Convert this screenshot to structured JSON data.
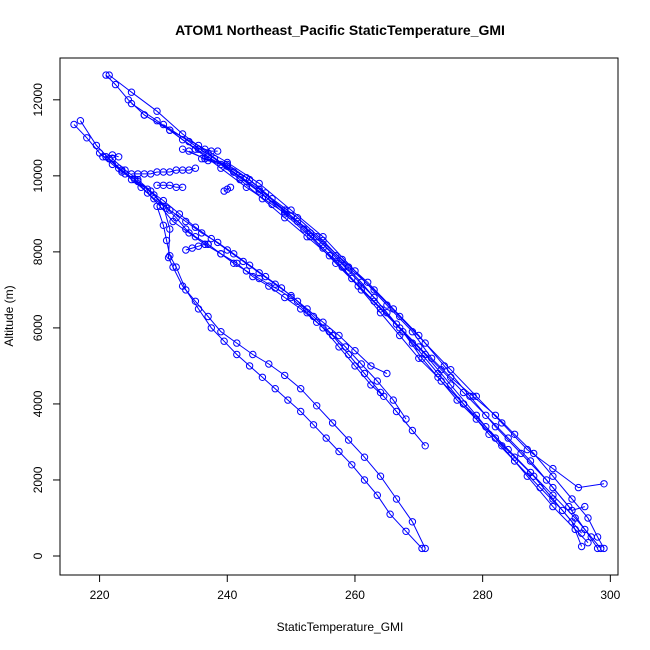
{
  "chart_data": {
    "type": "line",
    "title": "ATOM1 Northeast_Pacific StaticTemperature_GMI",
    "xlabel": "StaticTemperature_GMI",
    "ylabel": "Altitude (m)",
    "xlim": [
      213.8,
      301.2
    ],
    "ylim": [
      -500,
      13100
    ],
    "xticks": [
      220,
      240,
      260,
      280,
      300
    ],
    "yticks": [
      0,
      2000,
      4000,
      6000,
      8000,
      10000,
      12000
    ],
    "grid": false,
    "legend": "none",
    "color": "#0000ff",
    "marker": "open-circle",
    "series": [
      {
        "x": [
          221.0,
          222.5,
          224.5,
          227.0,
          231.0,
          235.5,
          240.0,
          245.0,
          250.0,
          255.0,
          260.0,
          265.0,
          269.0,
          272.0,
          275.0,
          278.5,
          282.0,
          285.0,
          288.0,
          291.0,
          294.0,
          296.5,
          298.0,
          299.0
        ],
        "y": [
          12650,
          12400,
          12000,
          11600,
          11200,
          10800,
          10350,
          9800,
          9100,
          8400,
          7500,
          6600,
          5900,
          5200,
          4700,
          4200,
          3700,
          3200,
          2700,
          2100,
          1500,
          1000,
          500,
          200
        ]
      },
      {
        "x": [
          221.5,
          225.0,
          229.0,
          233.0,
          237.0,
          241.0,
          245.0,
          249.0,
          253.0,
          257.0,
          260.5,
          264.0,
          267.5,
          270.5,
          273.5,
          277.0,
          280.5,
          284.0,
          287.5,
          291.0,
          294.5,
          297.0,
          298.5
        ],
        "y": [
          12650,
          12200,
          11700,
          11100,
          10600,
          10100,
          9600,
          9000,
          8400,
          7700,
          7100,
          6500,
          5900,
          5200,
          4600,
          4000,
          3400,
          2800,
          2200,
          1600,
          1000,
          500,
          200
        ]
      },
      {
        "x": [
          230.0,
          234.0,
          238.0,
          242.0,
          246.0,
          250.0,
          254.0,
          258.0,
          262.0,
          266.0,
          270.0,
          274.0,
          278.0,
          282.0,
          286.0,
          290.0,
          293.5,
          296.0,
          298.0
        ],
        "y": [
          11350,
          10900,
          10450,
          9950,
          9450,
          8950,
          8400,
          7800,
          7200,
          6500,
          5800,
          5000,
          4200,
          3400,
          2700,
          2000,
          1300,
          700,
          200
        ]
      },
      {
        "x": [
          227.0,
          231.0,
          235.0,
          239.0,
          243.0,
          247.0,
          251.0,
          255.0,
          259.0,
          263.0,
          267.0,
          271.0,
          275.0,
          279.0,
          283.0,
          287.0,
          291.0,
          294.5,
          296.5
        ],
        "y": [
          11600,
          11200,
          10700,
          10200,
          9700,
          9250,
          8800,
          8200,
          7500,
          6800,
          6000,
          5300,
          4500,
          3700,
          2900,
          2100,
          1300,
          700,
          350
        ]
      },
      {
        "x": [
          225.0,
          229.0,
          233.0,
          237.0,
          241.0,
          245.0,
          249.0,
          253.0,
          257.0,
          261.0,
          265.0,
          269.0,
          273.0,
          277.0,
          281.0,
          285.0,
          289.0,
          292.5,
          295.5
        ],
        "y": [
          11900,
          11450,
          10950,
          10500,
          10100,
          9650,
          9100,
          8500,
          7900,
          7200,
          6400,
          5600,
          4800,
          4000,
          3200,
          2500,
          1800,
          1200,
          600
        ]
      },
      {
        "x": [
          233.0,
          236.5,
          240.0,
          243.5,
          247.0,
          251.0,
          255.0,
          259.0,
          263.0,
          267.0,
          271.0,
          275.0,
          279.0,
          283.0,
          287.0,
          291.0,
          295.0,
          299.0
        ],
        "y": [
          10700,
          10450,
          10300,
          9900,
          9400,
          8900,
          8300,
          7600,
          7000,
          6300,
          5600,
          4900,
          4200,
          3500,
          2800,
          2300,
          1800,
          1900
        ]
      },
      {
        "x": [
          234.0,
          237.0,
          240.0,
          243.0,
          246.0,
          249.0,
          252.0,
          255.0,
          258.0,
          261.0,
          264.0,
          267.0,
          270.0,
          273.0,
          276.0,
          279.0,
          282.0,
          285.0,
          288.0,
          291.0,
          294.0,
          295.5
        ],
        "y": [
          10650,
          10400,
          10250,
          9950,
          9550,
          9050,
          8600,
          8100,
          7600,
          7000,
          6400,
          5800,
          5200,
          4700,
          4100,
          3600,
          3100,
          2600,
          2100,
          1500,
          900,
          250
        ]
      },
      {
        "x": [
          236.0,
          239.0,
          242.0,
          245.5,
          249.0,
          252.5,
          256.0,
          259.5,
          263.0,
          266.5,
          270.0,
          273.5,
          277.0,
          280.5,
          284.0,
          287.5,
          291.0,
          294.0,
          296.0
        ],
        "y": [
          10450,
          10300,
          9900,
          9400,
          8900,
          8400,
          7900,
          7300,
          6700,
          6100,
          5500,
          4900,
          4300,
          3700,
          3100,
          2500,
          1800,
          1200,
          1300
        ]
      },
      {
        "x": [
          216.0,
          218.0,
          220.0,
          222.0,
          224.0,
          226.5,
          228.5,
          230.5,
          232.0,
          233.5,
          235.0,
          237.0,
          239.0,
          241.0,
          243.0,
          245.0,
          247.5,
          250.0,
          252.5,
          255.0,
          257.5,
          260.0,
          262.5,
          264.5
        ],
        "y": [
          11350,
          11000,
          10600,
          10300,
          10050,
          9700,
          9400,
          9150,
          8900,
          8600,
          8400,
          8200,
          7950,
          7700,
          7500,
          7300,
          7050,
          6800,
          6400,
          6000,
          5500,
          5000,
          4500,
          4200
        ]
      },
      {
        "x": [
          217.0,
          219.5,
          221.5,
          223.5,
          225.5,
          227.5,
          229.5,
          231.5,
          234.0,
          236.5,
          239.0,
          241.5,
          244.0,
          246.5,
          249.0,
          251.5,
          254.0,
          256.5,
          259.0,
          261.5,
          264.0,
          266.5,
          269.0,
          271.0
        ],
        "y": [
          11450,
          10800,
          10450,
          10150,
          9900,
          9550,
          9200,
          8800,
          8500,
          8200,
          7950,
          7700,
          7350,
          7100,
          6800,
          6500,
          6150,
          5800,
          5300,
          4800,
          4300,
          3800,
          3300,
          2900
        ]
      },
      {
        "x": [
          221.0,
          223.0,
          225.0,
          227.5,
          230.0,
          232.5,
          235.0,
          237.5,
          240.0,
          242.5,
          245.0,
          247.5,
          250.0,
          252.5,
          255.0,
          257.5,
          260.0,
          262.5,
          265.0
        ],
        "y": [
          10500,
          10200,
          9900,
          9650,
          9350,
          9000,
          8650,
          8350,
          8050,
          7750,
          7450,
          7150,
          6850,
          6500,
          6150,
          5800,
          5400,
          5000,
          4800
        ]
      },
      {
        "x": [
          221.5,
          223.5,
          226.0,
          228.5,
          231.0,
          233.5,
          236.0,
          238.5,
          241.0,
          243.5,
          246.0,
          248.5,
          251.0,
          253.5,
          256.0,
          258.5,
          261.0,
          263.5,
          266.0,
          268.0
        ],
        "y": [
          10450,
          10100,
          9850,
          9500,
          9100,
          8800,
          8500,
          8250,
          7950,
          7650,
          7350,
          7050,
          6700,
          6300,
          5900,
          5500,
          5050,
          4600,
          4100,
          3600
        ]
      },
      {
        "x": [
          222.0,
          224.0,
          226.0,
          228.0,
          230.0,
          231.0,
          230.8,
          231.5,
          233.0,
          235.0,
          237.0,
          239.0,
          241.5,
          244.0,
          246.5,
          249.0,
          251.5,
          254.0,
          256.5,
          259.0,
          261.5,
          264.0,
          266.5,
          269.0,
          271.0
        ],
        "y": [
          10450,
          10150,
          9900,
          9600,
          9200,
          8600,
          7850,
          7600,
          7100,
          6700,
          6300,
          5900,
          5600,
          5300,
          5050,
          4750,
          4400,
          3950,
          3500,
          3050,
          2600,
          2100,
          1500,
          900,
          200
        ]
      },
      {
        "x": [
          229.0,
          230.0,
          230.5,
          231.0,
          232.0,
          233.5,
          235.5,
          237.5,
          239.5,
          241.5,
          243.5,
          245.5,
          247.5,
          249.5,
          251.5,
          253.5,
          255.5,
          257.5,
          259.5,
          261.5,
          263.5,
          265.5,
          268.0,
          270.5
        ],
        "y": [
          9200,
          8700,
          8300,
          7900,
          7600,
          7000,
          6500,
          6000,
          5650,
          5300,
          5000,
          4700,
          4400,
          4100,
          3800,
          3450,
          3100,
          2750,
          2400,
          2000,
          1600,
          1100,
          650,
          200
        ]
      },
      {
        "x": [
          225.0,
          226.0,
          227.0,
          228.0,
          229.0,
          230.0,
          231.0,
          232.0,
          233.0,
          234.0,
          235.0
        ],
        "y": [
          10050,
          10050,
          10050,
          10050,
          10100,
          10100,
          10100,
          10150,
          10150,
          10150,
          10200
        ]
      },
      {
        "x": [
          229.0,
          230.0,
          231.0,
          232.0,
          233.0
        ],
        "y": [
          9750,
          9750,
          9750,
          9700,
          9700
        ]
      },
      {
        "x": [
          233.5,
          234.5,
          235.5,
          236.5,
          237.0
        ],
        "y": [
          8050,
          8100,
          8150,
          8200,
          8200
        ]
      },
      {
        "x": [
          235.5,
          236.5,
          237.5,
          238.5
        ],
        "y": [
          10700,
          10700,
          10650,
          10650
        ]
      },
      {
        "x": [
          239.5,
          240.0,
          240.5
        ],
        "y": [
          9600,
          9650,
          9700
        ]
      },
      {
        "x": [
          220.5,
          221.0,
          222.0,
          223.0
        ],
        "y": [
          10500,
          10500,
          10550,
          10500
        ]
      }
    ]
  }
}
